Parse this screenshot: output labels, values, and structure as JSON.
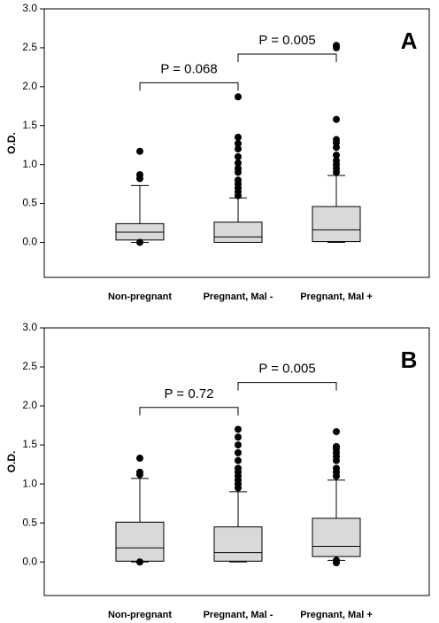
{
  "chart_data": [
    {
      "type": "box",
      "label": "A",
      "ylabel": "O.D.",
      "categories": [
        "Non-pregnant",
        "Pregnant, Mal -",
        "Pregnant, Mal +"
      ],
      "ylim": [
        -0.45,
        3.0
      ],
      "yticks": [
        {
          "value": 0,
          "label": "0.0"
        },
        {
          "value": 0.5,
          "label": "0.5"
        },
        {
          "value": 1,
          "label": "1.0"
        },
        {
          "value": 1.5,
          "label": "1.5"
        },
        {
          "value": 2,
          "label": "2.0"
        },
        {
          "value": 2.5,
          "label": "2.5"
        },
        {
          "value": 3,
          "label": "3.0"
        }
      ],
      "color": "#d9d9d9",
      "boxes": [
        {
          "whislo": 0.0,
          "q1": 0.03,
          "median": 0.13,
          "q3": 0.24,
          "whishi": 0.73,
          "fliers": [
            0.0,
            0.82,
            0.87,
            1.17
          ]
        },
        {
          "whislo": 0.0,
          "q1": 0.0,
          "median": 0.07,
          "q3": 0.26,
          "whishi": 0.57,
          "fliers": [
            0.6,
            0.65,
            0.7,
            0.75,
            0.8,
            0.9,
            0.95,
            1.02,
            1.1,
            1.2,
            1.27,
            1.35,
            1.87
          ]
        },
        {
          "whislo": 0.0,
          "q1": 0.01,
          "median": 0.16,
          "q3": 0.46,
          "whishi": 0.86,
          "fliers": [
            0.9,
            0.95,
            1.0,
            1.05,
            1.12,
            1.22,
            1.28,
            1.32,
            1.58,
            2.5,
            2.53
          ]
        }
      ],
      "brackets": [
        {
          "text": "P = 0.068",
          "y": 2.05
        },
        {
          "text": "P = 0.005",
          "y": 2.42
        }
      ]
    },
    {
      "type": "box",
      "label": "B",
      "ylabel": "O.D.",
      "categories": [
        "Non-pregnant",
        "Pregnant, Mal -",
        "Pregnant, Mal +"
      ],
      "ylim": [
        -0.43,
        3.0
      ],
      "yticks": [
        {
          "value": 0,
          "label": "0.0"
        },
        {
          "value": 0.5,
          "label": "0.5"
        },
        {
          "value": 1,
          "label": "1.0"
        },
        {
          "value": 1.5,
          "label": "1.5"
        },
        {
          "value": 2,
          "label": "2.0"
        },
        {
          "value": 2.5,
          "label": "2.5"
        },
        {
          "value": 3,
          "label": "3.0"
        }
      ],
      "color": "#d9d9d9",
      "boxes": [
        {
          "whislo": 0.0,
          "q1": 0.01,
          "median": 0.18,
          "q3": 0.51,
          "whishi": 1.07,
          "fliers": [
            0.0,
            1.12,
            1.15,
            1.33
          ]
        },
        {
          "whislo": 0.0,
          "q1": 0.01,
          "median": 0.12,
          "q3": 0.45,
          "whishi": 0.9,
          "fliers": [
            0.95,
            1.0,
            1.05,
            1.1,
            1.15,
            1.2,
            1.3,
            1.4,
            1.5,
            1.6,
            1.7
          ]
        },
        {
          "whislo": 0.02,
          "q1": 0.07,
          "median": 0.2,
          "q3": 0.56,
          "whishi": 1.05,
          "fliers": [
            -0.01,
            0.02,
            1.1,
            1.15,
            1.2,
            1.3,
            1.35,
            1.4,
            1.45,
            1.48,
            1.67
          ]
        }
      ],
      "brackets": [
        {
          "text": "P = 0.72",
          "y": 1.98
        },
        {
          "text": "P = 0.005",
          "y": 2.3
        }
      ]
    }
  ]
}
